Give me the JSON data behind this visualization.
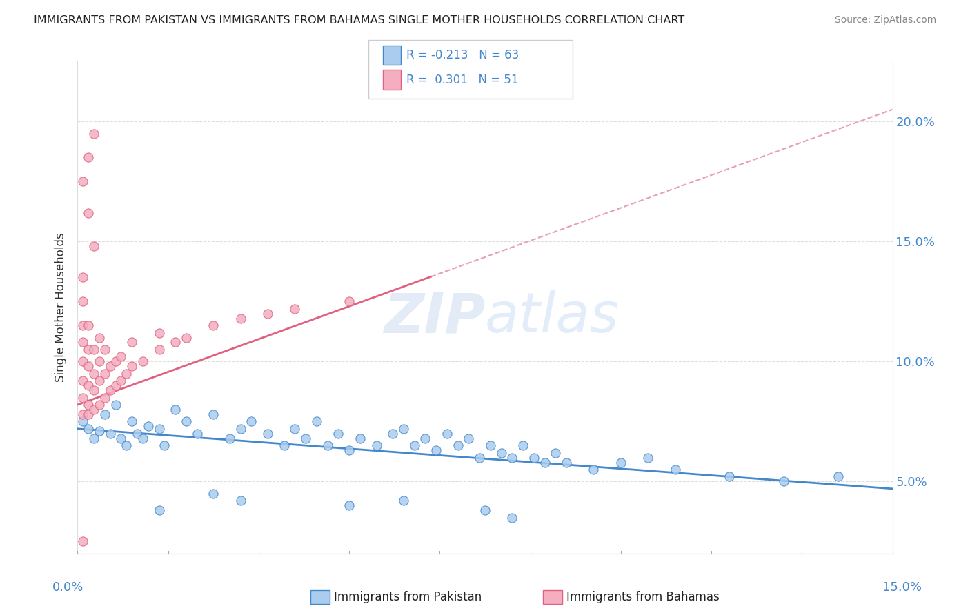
{
  "title": "IMMIGRANTS FROM PAKISTAN VS IMMIGRANTS FROM BAHAMAS SINGLE MOTHER HOUSEHOLDS CORRELATION CHART",
  "source": "Source: ZipAtlas.com",
  "ylabel": "Single Mother Households",
  "y_ticks": [
    0.05,
    0.1,
    0.15,
    0.2
  ],
  "y_tick_labels": [
    "5.0%",
    "10.0%",
    "15.0%",
    "20.0%"
  ],
  "x_range": [
    0.0,
    0.15
  ],
  "y_range": [
    0.02,
    0.225
  ],
  "pakistan_color": "#aaccee",
  "bahamas_color": "#f4aec0",
  "pakistan_line_color": "#4488cc",
  "bahamas_line_color": "#e06080",
  "pakistan_trend": [
    0.0,
    0.15,
    0.072,
    0.047
  ],
  "bahamas_trend": [
    0.0,
    0.15,
    0.082,
    0.205
  ],
  "dashed_color": "#e8a0b0",
  "pakistan_scatter": [
    [
      0.001,
      0.075
    ],
    [
      0.002,
      0.072
    ],
    [
      0.003,
      0.068
    ],
    [
      0.004,
      0.071
    ],
    [
      0.005,
      0.078
    ],
    [
      0.006,
      0.07
    ],
    [
      0.007,
      0.082
    ],
    [
      0.008,
      0.068
    ],
    [
      0.009,
      0.065
    ],
    [
      0.01,
      0.075
    ],
    [
      0.011,
      0.07
    ],
    [
      0.012,
      0.068
    ],
    [
      0.013,
      0.073
    ],
    [
      0.015,
      0.072
    ],
    [
      0.016,
      0.065
    ],
    [
      0.018,
      0.08
    ],
    [
      0.02,
      0.075
    ],
    [
      0.022,
      0.07
    ],
    [
      0.025,
      0.078
    ],
    [
      0.028,
      0.068
    ],
    [
      0.03,
      0.072
    ],
    [
      0.032,
      0.075
    ],
    [
      0.035,
      0.07
    ],
    [
      0.038,
      0.065
    ],
    [
      0.04,
      0.072
    ],
    [
      0.042,
      0.068
    ],
    [
      0.044,
      0.075
    ],
    [
      0.046,
      0.065
    ],
    [
      0.048,
      0.07
    ],
    [
      0.05,
      0.063
    ],
    [
      0.052,
      0.068
    ],
    [
      0.055,
      0.065
    ],
    [
      0.058,
      0.07
    ],
    [
      0.06,
      0.072
    ],
    [
      0.062,
      0.065
    ],
    [
      0.064,
      0.068
    ],
    [
      0.066,
      0.063
    ],
    [
      0.068,
      0.07
    ],
    [
      0.07,
      0.065
    ],
    [
      0.072,
      0.068
    ],
    [
      0.074,
      0.06
    ],
    [
      0.076,
      0.065
    ],
    [
      0.078,
      0.062
    ],
    [
      0.08,
      0.06
    ],
    [
      0.082,
      0.065
    ],
    [
      0.084,
      0.06
    ],
    [
      0.086,
      0.058
    ],
    [
      0.088,
      0.062
    ],
    [
      0.09,
      0.058
    ],
    [
      0.095,
      0.055
    ],
    [
      0.1,
      0.058
    ],
    [
      0.105,
      0.06
    ],
    [
      0.11,
      0.055
    ],
    [
      0.12,
      0.052
    ],
    [
      0.13,
      0.05
    ],
    [
      0.14,
      0.052
    ],
    [
      0.015,
      0.038
    ],
    [
      0.025,
      0.045
    ],
    [
      0.05,
      0.04
    ],
    [
      0.075,
      0.038
    ],
    [
      0.06,
      0.042
    ],
    [
      0.08,
      0.035
    ],
    [
      0.03,
      0.042
    ]
  ],
  "bahamas_scatter": [
    [
      0.001,
      0.078
    ],
    [
      0.001,
      0.085
    ],
    [
      0.001,
      0.092
    ],
    [
      0.001,
      0.1
    ],
    [
      0.001,
      0.108
    ],
    [
      0.001,
      0.115
    ],
    [
      0.001,
      0.125
    ],
    [
      0.001,
      0.135
    ],
    [
      0.002,
      0.078
    ],
    [
      0.002,
      0.082
    ],
    [
      0.002,
      0.09
    ],
    [
      0.002,
      0.098
    ],
    [
      0.002,
      0.105
    ],
    [
      0.002,
      0.115
    ],
    [
      0.002,
      0.162
    ],
    [
      0.003,
      0.08
    ],
    [
      0.003,
      0.088
    ],
    [
      0.003,
      0.095
    ],
    [
      0.003,
      0.105
    ],
    [
      0.003,
      0.148
    ],
    [
      0.004,
      0.082
    ],
    [
      0.004,
      0.092
    ],
    [
      0.004,
      0.1
    ],
    [
      0.004,
      0.11
    ],
    [
      0.005,
      0.085
    ],
    [
      0.005,
      0.095
    ],
    [
      0.005,
      0.105
    ],
    [
      0.006,
      0.088
    ],
    [
      0.006,
      0.098
    ],
    [
      0.007,
      0.09
    ],
    [
      0.007,
      0.1
    ],
    [
      0.008,
      0.092
    ],
    [
      0.008,
      0.102
    ],
    [
      0.009,
      0.095
    ],
    [
      0.01,
      0.098
    ],
    [
      0.01,
      0.108
    ],
    [
      0.012,
      0.1
    ],
    [
      0.015,
      0.105
    ],
    [
      0.015,
      0.112
    ],
    [
      0.018,
      0.108
    ],
    [
      0.02,
      0.11
    ],
    [
      0.025,
      0.115
    ],
    [
      0.03,
      0.118
    ],
    [
      0.035,
      0.12
    ],
    [
      0.04,
      0.122
    ],
    [
      0.05,
      0.125
    ],
    [
      0.001,
      0.175
    ],
    [
      0.002,
      0.185
    ],
    [
      0.003,
      0.195
    ],
    [
      0.001,
      0.025
    ]
  ]
}
